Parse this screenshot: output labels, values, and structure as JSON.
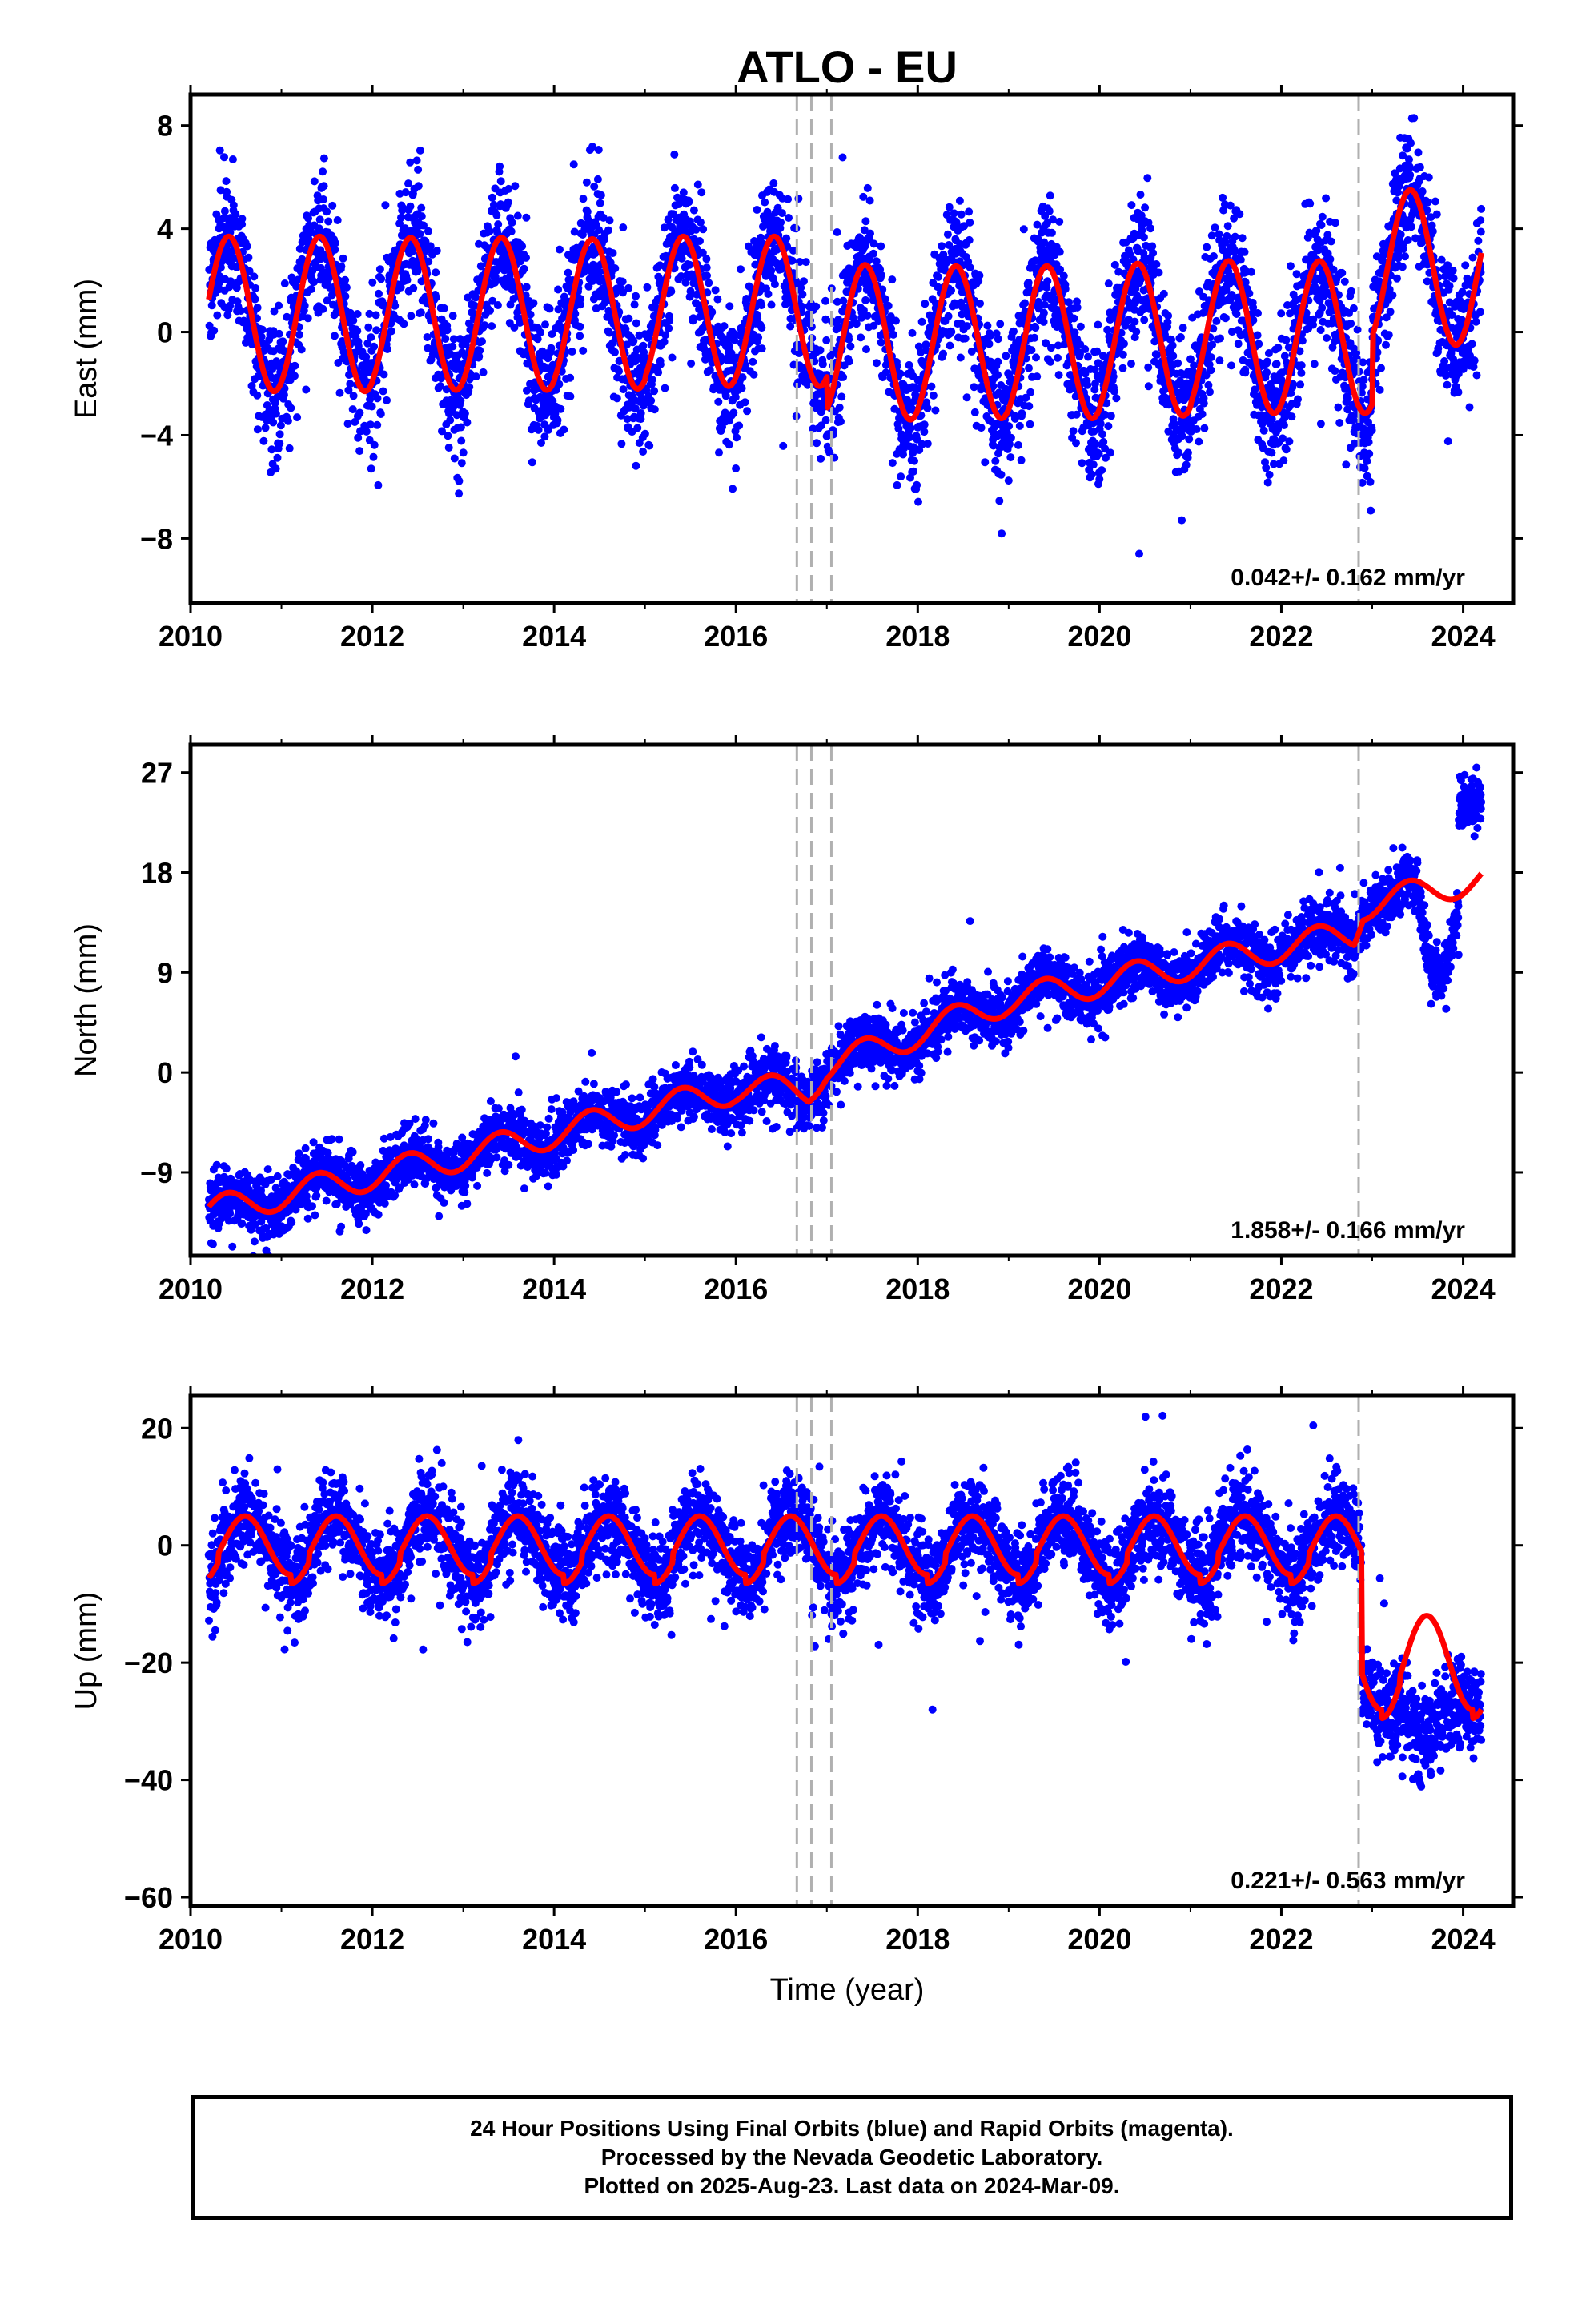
{
  "title": "ATLO - EU",
  "xlabel": "Time (year)",
  "footer": {
    "line1": "24 Hour Positions Using Final Orbits (blue) and Rapid Orbits (magenta).",
    "line2": "Processed by the Nevada Geodetic Laboratory.",
    "line3": "Plotted on 2025-Aug-23. Last data on 2024-Mar-09."
  },
  "colors": {
    "points": "#0000ff",
    "model": "#ff0000",
    "breaks": "#b0b0b0",
    "frame": "#000000"
  },
  "chart_data": [
    {
      "type": "scatter",
      "panel": "east",
      "ylabel": "East (mm)",
      "rate_label": "0.042+/- 0.162 mm/yr",
      "xlim": [
        2010.0,
        2024.55
      ],
      "ylim": [
        -10.5,
        9.2
      ],
      "xticks": [
        2010,
        2012,
        2014,
        2016,
        2018,
        2020,
        2022,
        2024
      ],
      "yticks": [
        8,
        4,
        0,
        -4,
        -8
      ],
      "ytick_labels": [
        "8",
        "4",
        "0",
        "−4",
        "−8"
      ],
      "breaks": [
        2016.67,
        2016.83,
        2017.05,
        2022.85
      ],
      "model": {
        "start": 2010.2,
        "end": 2024.2,
        "annual_amp": [
          3.0,
          3.0,
          2.95,
          2.95,
          2.9,
          2.9,
          2.9,
          3.0,
          2.95,
          2.95,
          2.95,
          2.95,
          2.95,
          3.0,
          3.0
        ],
        "peak_phase": 0.42,
        "offsets": [
          0.7,
          0.7,
          0.7,
          0.7,
          0.7,
          0.8,
          0.8,
          -0.4,
          -0.4,
          -0.4,
          -0.3,
          -0.2,
          -0.2,
          2.5,
          2.5
        ],
        "scatter_sd": 1.3,
        "notes": "offset at 2016.83 of about -4 mm; offset at 2022.85 of about +2.5 mm"
      }
    },
    {
      "type": "scatter",
      "panel": "north",
      "ylabel": "North (mm)",
      "rate_label": "1.858+/- 0.166 mm/yr",
      "xlim": [
        2010.0,
        2024.55
      ],
      "ylim": [
        -16.5,
        29.5
      ],
      "xticks": [
        2010,
        2012,
        2014,
        2016,
        2018,
        2020,
        2022,
        2024
      ],
      "yticks": [
        27,
        18,
        9,
        0,
        -9
      ],
      "ytick_labels": [
        "27",
        "18",
        "9",
        "0",
        "−9"
      ],
      "breaks": [
        2016.67,
        2016.83,
        2017.05,
        2022.85
      ],
      "model": {
        "start": 2010.2,
        "end": 2024.2,
        "trend_points": [
          [
            2010.2,
            -12.5
          ],
          [
            2013.0,
            -7.5
          ],
          [
            2016.0,
            -1.5
          ],
          [
            2016.8,
            -1.6
          ],
          [
            2017.0,
            0.5
          ],
          [
            2019.0,
            6.5
          ],
          [
            2022.8,
            12.5
          ],
          [
            2022.9,
            15.0
          ],
          [
            2024.2,
            17.5
          ]
        ],
        "annual_amp": 1.3,
        "peak_phase": 0.4,
        "scatter_sd": 1.3,
        "late_excursion": {
          "from": 2023.5,
          "to": 2023.95,
          "value": 8.5
        },
        "late_jump": {
          "from": 2023.95,
          "value": 25.0
        }
      }
    },
    {
      "type": "scatter",
      "panel": "up",
      "ylabel": "Up (mm)",
      "rate_label": "0.221+/- 0.563 mm/yr",
      "xlim": [
        2010.0,
        2024.55
      ],
      "ylim": [
        -61.5,
        25.5
      ],
      "xticks": [
        2010,
        2012,
        2014,
        2016,
        2018,
        2020,
        2022,
        2024
      ],
      "yticks": [
        20,
        0,
        -20,
        -40,
        -60
      ],
      "ytick_labels": [
        "20",
        "0",
        "−20",
        "−40",
        "−60"
      ],
      "breaks": [
        2016.67,
        2016.83,
        2017.05,
        2022.85
      ],
      "model": {
        "start": 2010.2,
        "end": 2024.2,
        "annual_amp": 5.0,
        "peak_phase": 0.6,
        "base_level": 0.0,
        "post_offset": -20.0,
        "post_start": 2022.88,
        "scatter_sd": 3.8,
        "late_excursion": {
          "from": 2023.2,
          "to": 2024.0,
          "value": -33.0
        }
      }
    }
  ]
}
